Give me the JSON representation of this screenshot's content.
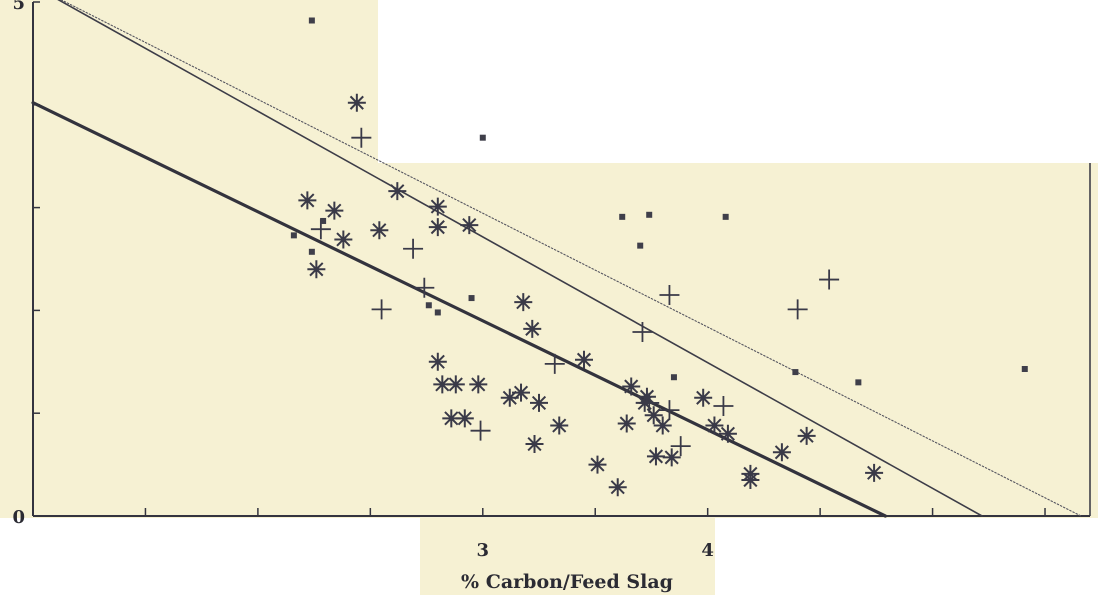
{
  "chart_data": {
    "type": "scatter",
    "title": "",
    "xlabel": "% Carbon/Feed Slag",
    "ylabel": "",
    "xlim": [
      1,
      5.7
    ],
    "ylim": [
      0,
      5
    ],
    "x_ticks": [
      1.5,
      2,
      2.5,
      3,
      3.5,
      4,
      4.5,
      5,
      5.5
    ],
    "x_tick_labels": [
      {
        "value": 3,
        "label": "3"
      },
      {
        "value": 4,
        "label": "4"
      }
    ],
    "y_ticks": [
      0,
      1,
      2,
      3,
      4,
      5
    ],
    "y_tick_labels": [
      {
        "value": 0,
        "label": "0"
      },
      {
        "value": 5,
        "label": "5"
      }
    ],
    "grid": false,
    "series": [
      {
        "marker": "asterisk",
        "points": [
          [
            2.44,
            4.02
          ],
          [
            2.22,
            3.07
          ],
          [
            2.34,
            2.97
          ],
          [
            2.62,
            3.16
          ],
          [
            2.54,
            2.78
          ],
          [
            2.8,
            2.81
          ],
          [
            2.26,
            2.4
          ],
          [
            2.38,
            2.69
          ],
          [
            2.94,
            2.83
          ],
          [
            2.8,
            3.01
          ],
          [
            3.18,
            2.08
          ],
          [
            3.45,
            1.52
          ],
          [
            3.22,
            1.82
          ],
          [
            3.12,
            1.15
          ],
          [
            3.25,
            1.1
          ],
          [
            2.8,
            1.5
          ],
          [
            2.88,
            1.28
          ],
          [
            2.82,
            1.28
          ],
          [
            2.86,
            0.95
          ],
          [
            2.92,
            0.95
          ],
          [
            2.98,
            1.28
          ],
          [
            3.34,
            0.88
          ],
          [
            3.23,
            0.7
          ],
          [
            3.51,
            0.5
          ],
          [
            3.72,
            1.1
          ],
          [
            3.73,
            1.16
          ],
          [
            3.66,
            1.26
          ],
          [
            3.64,
            0.9
          ],
          [
            3.8,
            0.88
          ],
          [
            3.76,
            0.98
          ],
          [
            3.84,
            0.57
          ],
          [
            3.77,
            0.58
          ],
          [
            3.6,
            0.28
          ],
          [
            3.98,
            1.15
          ],
          [
            4.03,
            0.88
          ],
          [
            4.09,
            0.8
          ],
          [
            4.19,
            0.35
          ],
          [
            4.19,
            0.41
          ],
          [
            4.33,
            0.62
          ],
          [
            4.44,
            0.78
          ],
          [
            4.74,
            0.42
          ],
          [
            3.17,
            1.2
          ]
        ]
      },
      {
        "marker": "plus",
        "points": [
          [
            2.46,
            3.68
          ],
          [
            2.28,
            2.79
          ],
          [
            2.69,
            2.6
          ],
          [
            2.74,
            2.22
          ],
          [
            2.55,
            2.01
          ],
          [
            2.99,
            0.83
          ],
          [
            3.32,
            1.48
          ],
          [
            3.71,
            1.79
          ],
          [
            3.83,
            2.15
          ],
          [
            4.07,
            1.07
          ],
          [
            4.4,
            2.01
          ],
          [
            4.54,
            2.3
          ],
          [
            3.74,
            1.1
          ],
          [
            3.83,
            1.03
          ],
          [
            3.88,
            0.68
          ]
        ]
      },
      {
        "marker": "dot",
        "points": [
          [
            2.24,
            4.82
          ],
          [
            2.76,
            2.05
          ],
          [
            2.8,
            1.98
          ],
          [
            2.95,
            2.12
          ],
          [
            2.29,
            2.87
          ],
          [
            2.24,
            2.57
          ],
          [
            2.16,
            2.73
          ],
          [
            3.0,
            3.68
          ],
          [
            3.62,
            2.91
          ],
          [
            3.74,
            2.93
          ],
          [
            3.7,
            2.63
          ],
          [
            3.85,
            1.35
          ],
          [
            4.08,
            2.91
          ],
          [
            4.39,
            1.4
          ],
          [
            4.67,
            1.3
          ],
          [
            5.41,
            1.43
          ]
        ]
      }
    ],
    "lines": [
      {
        "style": "thick",
        "from": [
          1,
          4.02
        ],
        "to": [
          4.79,
          0
        ]
      },
      {
        "style": "medium",
        "from": [
          1,
          5.16
        ],
        "to": [
          5.22,
          0
        ]
      },
      {
        "style": "dotted",
        "from": [
          1,
          5.16
        ],
        "to": [
          5.66,
          0
        ]
      }
    ]
  }
}
